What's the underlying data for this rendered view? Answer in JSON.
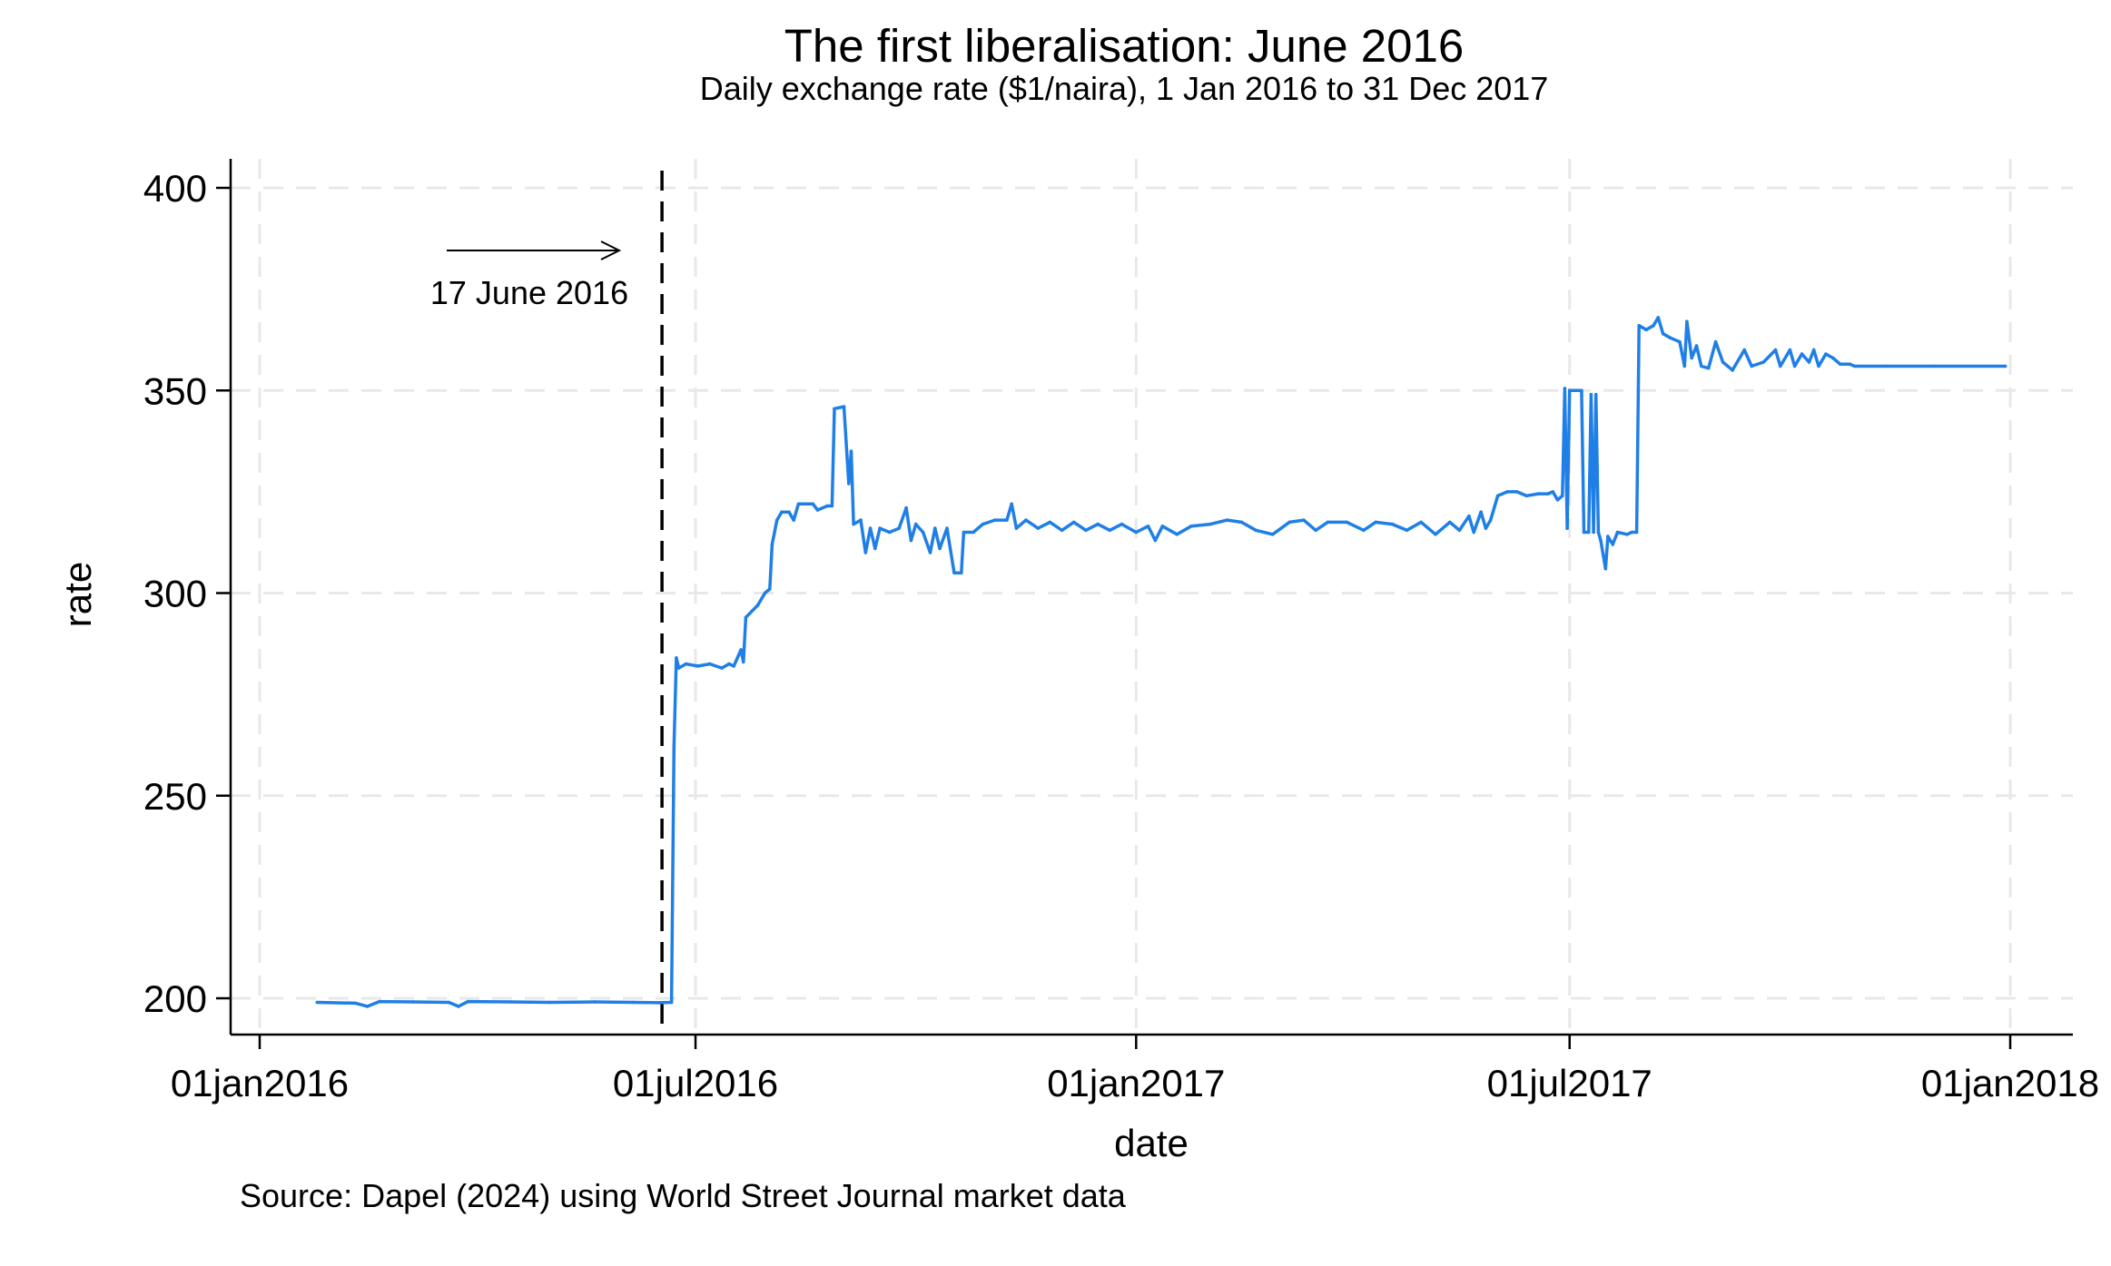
{
  "chart_data": {
    "type": "line",
    "title": "The first liberalisation: June 2016",
    "subtitle": "Daily exchange rate ($1/naira), 1 Jan 2016 to 31 Dec 2017",
    "xlabel": "date",
    "ylabel": "rate",
    "note": "Source: Dapel (2024) using World Street Journal market data",
    "xlim": [
      "2016-01-01",
      "2018-01-01"
    ],
    "ylim": [
      191,
      408
    ],
    "x_ticks": [
      {
        "date": "2016-01-01",
        "label": "01jan2016"
      },
      {
        "date": "2016-07-01",
        "label": "01jul2016"
      },
      {
        "date": "2017-01-01",
        "label": "01jan2017"
      },
      {
        "date": "2017-07-01",
        "label": "01jul2017"
      },
      {
        "date": "2018-01-01",
        "label": "01jan2018"
      }
    ],
    "y_ticks": [
      200,
      250,
      300,
      350,
      400
    ],
    "grid": true,
    "legend": "none",
    "series_color": "#1f7fe6",
    "event": {
      "date": "2016-06-17",
      "label": "17 June 2016"
    },
    "series": [
      {
        "points": [
          [
            "2016-01-25",
            199.0
          ],
          [
            "2016-02-10",
            198.8
          ],
          [
            "2016-02-15",
            198.0
          ],
          [
            "2016-02-20",
            199.2
          ],
          [
            "2016-03-05",
            199.1
          ],
          [
            "2016-03-20",
            199.0
          ],
          [
            "2016-03-24",
            198.0
          ],
          [
            "2016-03-28",
            199.2
          ],
          [
            "2016-04-15",
            199.1
          ],
          [
            "2016-05-01",
            199.0
          ],
          [
            "2016-05-20",
            199.1
          ],
          [
            "2016-06-05",
            199.0
          ],
          [
            "2016-06-16",
            198.9
          ],
          [
            "2016-06-21",
            199.0
          ],
          [
            "2016-06-22",
            262
          ],
          [
            "2016-06-23",
            284
          ],
          [
            "2016-06-24",
            281.5
          ],
          [
            "2016-06-27",
            282.5
          ],
          [
            "2016-07-02",
            282
          ],
          [
            "2016-07-07",
            282.5
          ],
          [
            "2016-07-12",
            281.5
          ],
          [
            "2016-07-15",
            282.5
          ],
          [
            "2016-07-17",
            282
          ],
          [
            "2016-07-20",
            286
          ],
          [
            "2016-07-21",
            283
          ],
          [
            "2016-07-22",
            294
          ],
          [
            "2016-07-27",
            297
          ],
          [
            "2016-07-30",
            300
          ],
          [
            "2016-08-01",
            301
          ],
          [
            "2016-08-02",
            312
          ],
          [
            "2016-08-04",
            318
          ],
          [
            "2016-08-06",
            320
          ],
          [
            "2016-08-09",
            320
          ],
          [
            "2016-08-11",
            318
          ],
          [
            "2016-08-13",
            322
          ],
          [
            "2016-08-17",
            322
          ],
          [
            "2016-08-19",
            322
          ],
          [
            "2016-08-21",
            320.5
          ],
          [
            "2016-08-25",
            321.5
          ],
          [
            "2016-08-27",
            321.5
          ],
          [
            "2016-08-28",
            345.5
          ],
          [
            "2016-09-01",
            346
          ],
          [
            "2016-09-03",
            327
          ],
          [
            "2016-09-04",
            335
          ],
          [
            "2016-09-05",
            317
          ],
          [
            "2016-09-08",
            318
          ],
          [
            "2016-09-10",
            310
          ],
          [
            "2016-09-12",
            316
          ],
          [
            "2016-09-14",
            311
          ],
          [
            "2016-09-16",
            316
          ],
          [
            "2016-09-20",
            315
          ],
          [
            "2016-09-24",
            316
          ],
          [
            "2016-09-27",
            321
          ],
          [
            "2016-09-29",
            313
          ],
          [
            "2016-10-01",
            317
          ],
          [
            "2016-10-04",
            315
          ],
          [
            "2016-10-07",
            310
          ],
          [
            "2016-10-09",
            316
          ],
          [
            "2016-10-11",
            311
          ],
          [
            "2016-10-14",
            316
          ],
          [
            "2016-10-17",
            305
          ],
          [
            "2016-10-20",
            305
          ],
          [
            "2016-10-21",
            315
          ],
          [
            "2016-10-25",
            315
          ],
          [
            "2016-10-29",
            317
          ],
          [
            "2016-11-03",
            318
          ],
          [
            "2016-11-08",
            318
          ],
          [
            "2016-11-10",
            322
          ],
          [
            "2016-11-12",
            316
          ],
          [
            "2016-11-16",
            318
          ],
          [
            "2016-11-21",
            316
          ],
          [
            "2016-11-26",
            317.5
          ],
          [
            "2016-12-01",
            315.5
          ],
          [
            "2016-12-06",
            317.5
          ],
          [
            "2016-12-11",
            315.5
          ],
          [
            "2016-12-16",
            317
          ],
          [
            "2016-12-21",
            315.5
          ],
          [
            "2016-12-26",
            317
          ],
          [
            "2017-01-01",
            315
          ],
          [
            "2017-01-06",
            316.5
          ],
          [
            "2017-01-09",
            313
          ],
          [
            "2017-01-12",
            316.5
          ],
          [
            "2017-01-18",
            314.5
          ],
          [
            "2017-01-24",
            316.5
          ],
          [
            "2017-02-01",
            317
          ],
          [
            "2017-02-08",
            318
          ],
          [
            "2017-02-14",
            317.5
          ],
          [
            "2017-02-20",
            315.5
          ],
          [
            "2017-02-27",
            314.5
          ],
          [
            "2017-03-06",
            317.5
          ],
          [
            "2017-03-12",
            318
          ],
          [
            "2017-03-17",
            315.5
          ],
          [
            "2017-03-22",
            317.5
          ],
          [
            "2017-03-30",
            317.5
          ],
          [
            "2017-04-06",
            315.5
          ],
          [
            "2017-04-11",
            317.5
          ],
          [
            "2017-04-18",
            317
          ],
          [
            "2017-04-24",
            315.5
          ],
          [
            "2017-04-30",
            317.5
          ],
          [
            "2017-05-06",
            314.5
          ],
          [
            "2017-05-12",
            317.5
          ],
          [
            "2017-05-16",
            315.5
          ],
          [
            "2017-05-20",
            319
          ],
          [
            "2017-05-22",
            315
          ],
          [
            "2017-05-25",
            320
          ],
          [
            "2017-05-27",
            316
          ],
          [
            "2017-05-29",
            318
          ],
          [
            "2017-06-01",
            324
          ],
          [
            "2017-06-05",
            325
          ],
          [
            "2017-06-09",
            325
          ],
          [
            "2017-06-13",
            324
          ],
          [
            "2017-06-18",
            324.5
          ],
          [
            "2017-06-22",
            324.5
          ],
          [
            "2017-06-24",
            325
          ],
          [
            "2017-06-26",
            323
          ],
          [
            "2017-06-28",
            324
          ],
          [
            "2017-06-29",
            350.5
          ],
          [
            "2017-06-30",
            316
          ],
          [
            "2017-07-01",
            350
          ],
          [
            "2017-07-06",
            350
          ],
          [
            "2017-07-07",
            315
          ],
          [
            "2017-07-09",
            315
          ],
          [
            "2017-07-10",
            349
          ],
          [
            "2017-07-11",
            315
          ],
          [
            "2017-07-12",
            349
          ],
          [
            "2017-07-13",
            315
          ],
          [
            "2017-07-14",
            313
          ],
          [
            "2017-07-16",
            306
          ],
          [
            "2017-07-17",
            314
          ],
          [
            "2017-07-19",
            312
          ],
          [
            "2017-07-21",
            315
          ],
          [
            "2017-07-25",
            314.5
          ],
          [
            "2017-07-27",
            315
          ],
          [
            "2017-07-29",
            315
          ],
          [
            "2017-07-30",
            366
          ],
          [
            "2017-08-02",
            365
          ],
          [
            "2017-08-05",
            366
          ],
          [
            "2017-08-07",
            368
          ],
          [
            "2017-08-09",
            364
          ],
          [
            "2017-08-12",
            363
          ],
          [
            "2017-08-16",
            362
          ],
          [
            "2017-08-18",
            356
          ],
          [
            "2017-08-19",
            367
          ],
          [
            "2017-08-21",
            358
          ],
          [
            "2017-08-23",
            361
          ],
          [
            "2017-08-25",
            356
          ],
          [
            "2017-08-28",
            355.5
          ],
          [
            "2017-08-31",
            362
          ],
          [
            "2017-09-03",
            357
          ],
          [
            "2017-09-07",
            355
          ],
          [
            "2017-09-12",
            360
          ],
          [
            "2017-09-15",
            356
          ],
          [
            "2017-09-20",
            357
          ],
          [
            "2017-09-25",
            360
          ],
          [
            "2017-09-27",
            356
          ],
          [
            "2017-10-01",
            360
          ],
          [
            "2017-10-03",
            356
          ],
          [
            "2017-10-06",
            359
          ],
          [
            "2017-10-09",
            357
          ],
          [
            "2017-10-11",
            360
          ],
          [
            "2017-10-13",
            356
          ],
          [
            "2017-10-16",
            359
          ],
          [
            "2017-10-19",
            358
          ],
          [
            "2017-10-22",
            356.5
          ],
          [
            "2017-10-26",
            356.5
          ],
          [
            "2017-10-28",
            356
          ],
          [
            "2017-11-10",
            356
          ],
          [
            "2017-11-30",
            356
          ],
          [
            "2017-12-30",
            356
          ]
        ]
      }
    ]
  }
}
